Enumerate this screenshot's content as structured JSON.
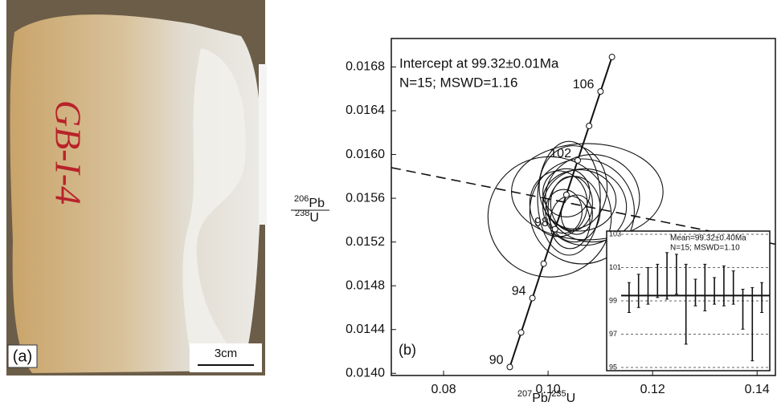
{
  "panel_a": {
    "label": "(a)",
    "sample_mark": "GB-I-4",
    "scale_bar": "3cm"
  },
  "chart_data": [
    {
      "type": "concordia",
      "panel_label": "(b)",
      "annotations": [
        "Intercept at 99.32±0.01Ma",
        "N=15; MSWD=1.16"
      ],
      "xlabel": {
        "num_mass": "207",
        "num": "Pb",
        "den_mass": "235",
        "den": "U"
      },
      "ylabel": {
        "num_mass": "206",
        "num": "Pb",
        "den_mass": "238",
        "den": "U"
      },
      "xlim": [
        0.07,
        0.1435
      ],
      "ylim": [
        0.01398,
        0.01706
      ],
      "xticks": [
        0.08,
        {
          "value": 0.1,
          "label": "0.10"
        },
        0.12,
        0.14
      ],
      "yticks": [
        {
          "value": 0.014,
          "label": "0.0140"
        },
        0.0144,
        0.0148,
        0.0152,
        0.0156,
        {
          "value": 0.016,
          "label": "0.0160"
        },
        0.0164,
        0.0168
      ],
      "concordia": {
        "age_labels": [
          90,
          null,
          94,
          null,
          98,
          null,
          102,
          null,
          106,
          null
        ],
        "x": [
          0.09268,
          0.09484,
          0.097,
          0.09916,
          0.10133,
          0.1035,
          0.10567,
          0.10785,
          0.11004,
          0.11223
        ],
        "y": [
          0.014058,
          0.014373,
          0.014688,
          0.015002,
          0.015317,
          0.015632,
          0.015946,
          0.016261,
          0.016576,
          0.016891
        ]
      },
      "discordia": {
        "x": [
          0.07,
          0.1435
        ],
        "y": [
          0.01588,
          0.01518
        ]
      },
      "ellipses": {
        "x": [
          0.1003,
          0.1075,
          0.104,
          0.1045,
          0.105,
          0.106,
          0.103,
          0.107,
          0.1035,
          0.1055,
          0.102,
          0.1085,
          0.1048,
          0.1042,
          0.1065
        ],
        "y": [
          0.01543,
          0.01566,
          0.0156,
          0.01555,
          0.0155,
          0.01558,
          0.01548,
          0.01552,
          0.01565,
          0.01545,
          0.01555,
          0.0156,
          0.0157,
          0.01538,
          0.01548
        ],
        "x_err": [
          0.0118,
          0.0145,
          0.006,
          0.004,
          0.005,
          0.007,
          0.0035,
          0.008,
          0.0045,
          0.003,
          0.0055,
          0.009,
          0.0065,
          0.0038,
          0.01
        ],
        "y_err": [
          0.00055,
          0.00044,
          0.00052,
          0.00025,
          0.0003,
          0.00028,
          0.0002,
          0.00035,
          0.00022,
          0.00018,
          0.0003,
          0.0004,
          0.00038,
          0.00024,
          0.00048
        ]
      }
    },
    {
      "type": "weighted_mean",
      "annotations": [
        "Mean=99.32±0.40Ma",
        "N=15; MSWD=1.10"
      ],
      "mean": 99.32,
      "ylim": [
        95,
        103
      ],
      "yticks": [
        95,
        97,
        99,
        101,
        103
      ],
      "values": [
        99.2,
        99.6,
        99.9,
        100.2,
        100.5,
        100.6,
        98.8,
        99.5,
        99.8,
        99.6,
        99.9,
        99.8,
        98.5,
        97.6,
        99.2
      ],
      "errors": [
        0.9,
        1.0,
        1.1,
        1.0,
        1.4,
        1.2,
        2.4,
        0.8,
        1.4,
        0.8,
        1.2,
        1.0,
        1.2,
        2.2,
        0.9
      ]
    }
  ]
}
